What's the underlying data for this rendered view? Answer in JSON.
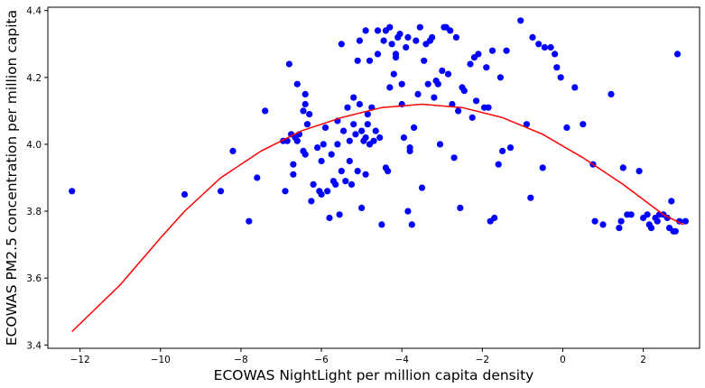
{
  "chart_data": {
    "type": "scatter",
    "xlabel": "ECOWAS NightLight per million capita density",
    "ylabel": "ECOWAS PM2.5 concentration per million capita",
    "xlim": [
      -12.8,
      3.4
    ],
    "ylim": [
      3.39,
      4.41
    ],
    "x_ticks": [
      -12,
      -10,
      -8,
      -6,
      -4,
      -2,
      0,
      2
    ],
    "y_ticks": [
      3.4,
      3.6,
      3.8,
      4.0,
      4.2,
      4.4
    ],
    "grid": false,
    "legend": "none",
    "series": [
      {
        "kind": "scatter",
        "color": "#0000ff",
        "points": [
          [
            -12.2,
            3.86
          ],
          [
            -9.4,
            3.85
          ],
          [
            -8.5,
            3.86
          ],
          [
            -8.2,
            3.98
          ],
          [
            -7.8,
            3.77
          ],
          [
            -7.6,
            3.9
          ],
          [
            -7.4,
            4.1
          ],
          [
            -6.95,
            4.01
          ],
          [
            -6.9,
            3.86
          ],
          [
            -6.85,
            4.01
          ],
          [
            -6.8,
            4.24
          ],
          [
            -6.75,
            4.03
          ],
          [
            -6.7,
            3.94
          ],
          [
            -6.7,
            3.91
          ],
          [
            -6.65,
            4.02
          ],
          [
            -6.6,
            4.18
          ],
          [
            -6.6,
            4.01
          ],
          [
            -6.55,
            4.03
          ],
          [
            -6.45,
            3.98
          ],
          [
            -6.4,
            3.97
          ],
          [
            -6.45,
            4.1
          ],
          [
            -6.4,
            4.15
          ],
          [
            -6.4,
            4.12
          ],
          [
            -6.35,
            4.06
          ],
          [
            -6.3,
            4.09
          ],
          [
            -6.25,
            3.83
          ],
          [
            -6.2,
            3.88
          ],
          [
            -6.1,
            3.99
          ],
          [
            -6.05,
            3.86
          ],
          [
            -6.0,
            3.95
          ],
          [
            -6.0,
            3.85
          ],
          [
            -5.95,
            4.0
          ],
          [
            -5.9,
            4.05
          ],
          [
            -5.85,
            3.86
          ],
          [
            -5.8,
            3.78
          ],
          [
            -5.75,
            3.97
          ],
          [
            -5.7,
            3.89
          ],
          [
            -5.65,
            3.88
          ],
          [
            -5.6,
            4.07
          ],
          [
            -5.6,
            4.0
          ],
          [
            -5.55,
            3.79
          ],
          [
            -5.5,
            3.92
          ],
          [
            -5.5,
            4.3
          ],
          [
            -5.45,
            4.04
          ],
          [
            -5.4,
            3.89
          ],
          [
            -5.35,
            4.11
          ],
          [
            -5.3,
            4.01
          ],
          [
            -5.3,
            3.95
          ],
          [
            -5.25,
            3.88
          ],
          [
            -5.2,
            4.06
          ],
          [
            -5.2,
            4.14
          ],
          [
            -5.15,
            4.03
          ],
          [
            -5.1,
            4.25
          ],
          [
            -5.1,
            3.92
          ],
          [
            -5.05,
            4.31
          ],
          [
            -5.05,
            4.12
          ],
          [
            -5.0,
            3.81
          ],
          [
            -5.0,
            4.04
          ],
          [
            -4.95,
            4.01
          ],
          [
            -4.9,
            4.02
          ],
          [
            -4.9,
            3.91
          ],
          [
            -4.9,
            4.34
          ],
          [
            -4.85,
            4.09
          ],
          [
            -4.85,
            4.06
          ],
          [
            -4.8,
            4.25
          ],
          [
            -4.8,
            4.0
          ],
          [
            -4.75,
            4.11
          ],
          [
            -4.7,
            4.01
          ],
          [
            -4.65,
            4.04
          ],
          [
            -4.6,
            4.34
          ],
          [
            -4.6,
            4.27
          ],
          [
            -4.55,
            4.02
          ],
          [
            -4.5,
            3.76
          ],
          [
            -4.45,
            4.31
          ],
          [
            -4.4,
            4.34
          ],
          [
            -4.4,
            3.93
          ],
          [
            -4.35,
            3.92
          ],
          [
            -4.3,
            4.17
          ],
          [
            -4.3,
            4.35
          ],
          [
            -4.25,
            4.3
          ],
          [
            -4.2,
            4.21
          ],
          [
            -4.15,
            4.26
          ],
          [
            -4.15,
            4.27
          ],
          [
            -4.1,
            4.32
          ],
          [
            -4.05,
            4.33
          ],
          [
            -4.0,
            4.18
          ],
          [
            -4.0,
            4.12
          ],
          [
            -3.95,
            4.02
          ],
          [
            -3.9,
            4.29
          ],
          [
            -3.85,
            4.32
          ],
          [
            -3.85,
            3.8
          ],
          [
            -3.8,
            3.99
          ],
          [
            -3.8,
            3.98
          ],
          [
            -3.75,
            3.76
          ],
          [
            -3.7,
            4.05
          ],
          [
            -3.65,
            4.31
          ],
          [
            -3.6,
            4.15
          ],
          [
            -3.55,
            4.35
          ],
          [
            -3.5,
            3.87
          ],
          [
            -3.45,
            4.25
          ],
          [
            -3.4,
            4.3
          ],
          [
            -3.35,
            4.18
          ],
          [
            -3.3,
            4.31
          ],
          [
            -3.25,
            4.32
          ],
          [
            -3.2,
            4.14
          ],
          [
            -3.15,
            4.19
          ],
          [
            -3.1,
            4.18
          ],
          [
            -3.05,
            4.0
          ],
          [
            -3.0,
            4.22
          ],
          [
            -2.95,
            4.35
          ],
          [
            -2.9,
            4.35
          ],
          [
            -2.85,
            4.21
          ],
          [
            -2.8,
            4.34
          ],
          [
            -2.75,
            4.12
          ],
          [
            -2.7,
            3.96
          ],
          [
            -2.65,
            4.32
          ],
          [
            -2.6,
            4.1
          ],
          [
            -2.55,
            3.81
          ],
          [
            -2.5,
            4.17
          ],
          [
            -2.45,
            4.16
          ],
          [
            -2.3,
            4.24
          ],
          [
            -2.25,
            4.08
          ],
          [
            -2.2,
            4.26
          ],
          [
            -2.15,
            4.13
          ],
          [
            -2.1,
            4.27
          ],
          [
            -1.95,
            4.11
          ],
          [
            -1.9,
            4.23
          ],
          [
            -1.85,
            4.11
          ],
          [
            -1.8,
            3.77
          ],
          [
            -1.75,
            4.28
          ],
          [
            -1.7,
            3.78
          ],
          [
            -1.6,
            3.94
          ],
          [
            -1.55,
            4.2
          ],
          [
            -1.5,
            3.98
          ],
          [
            -1.4,
            4.28
          ],
          [
            -1.3,
            3.99
          ],
          [
            -1.05,
            4.37
          ],
          [
            -0.9,
            4.06
          ],
          [
            -0.8,
            3.84
          ],
          [
            -0.75,
            4.32
          ],
          [
            -0.6,
            4.3
          ],
          [
            -0.5,
            3.93
          ],
          [
            -0.45,
            4.29
          ],
          [
            -0.3,
            4.29
          ],
          [
            -0.2,
            4.27
          ],
          [
            -0.15,
            4.23
          ],
          [
            -0.05,
            4.2
          ],
          [
            0.1,
            4.05
          ],
          [
            0.3,
            4.17
          ],
          [
            0.5,
            4.06
          ],
          [
            0.75,
            3.94
          ],
          [
            0.8,
            3.77
          ],
          [
            1.0,
            3.76
          ],
          [
            1.2,
            4.15
          ],
          [
            1.4,
            3.75
          ],
          [
            1.45,
            3.77
          ],
          [
            1.5,
            3.93
          ],
          [
            1.6,
            3.79
          ],
          [
            1.7,
            3.79
          ],
          [
            1.9,
            3.92
          ],
          [
            2.0,
            3.78
          ],
          [
            2.1,
            3.79
          ],
          [
            2.15,
            3.76
          ],
          [
            2.2,
            3.75
          ],
          [
            2.3,
            3.78
          ],
          [
            2.35,
            3.77
          ],
          [
            2.4,
            3.79
          ],
          [
            2.5,
            3.79
          ],
          [
            2.6,
            3.78
          ],
          [
            2.65,
            3.75
          ],
          [
            2.7,
            3.83
          ],
          [
            2.75,
            3.74
          ],
          [
            2.8,
            3.74
          ],
          [
            2.85,
            4.27
          ],
          [
            2.9,
            3.77
          ],
          [
            3.05,
            3.77
          ]
        ]
      },
      {
        "kind": "line",
        "color": "#ff0000",
        "points": [
          [
            -12.2,
            3.44
          ],
          [
            -11.0,
            3.58
          ],
          [
            -10.0,
            3.72
          ],
          [
            -9.4,
            3.8
          ],
          [
            -8.5,
            3.9
          ],
          [
            -7.5,
            3.98
          ],
          [
            -6.5,
            4.04
          ],
          [
            -5.5,
            4.08
          ],
          [
            -4.5,
            4.11
          ],
          [
            -3.5,
            4.12
          ],
          [
            -2.5,
            4.11
          ],
          [
            -1.5,
            4.08
          ],
          [
            -0.5,
            4.03
          ],
          [
            0.5,
            3.96
          ],
          [
            1.5,
            3.88
          ],
          [
            2.5,
            3.79
          ],
          [
            3.0,
            3.76
          ]
        ]
      }
    ]
  }
}
